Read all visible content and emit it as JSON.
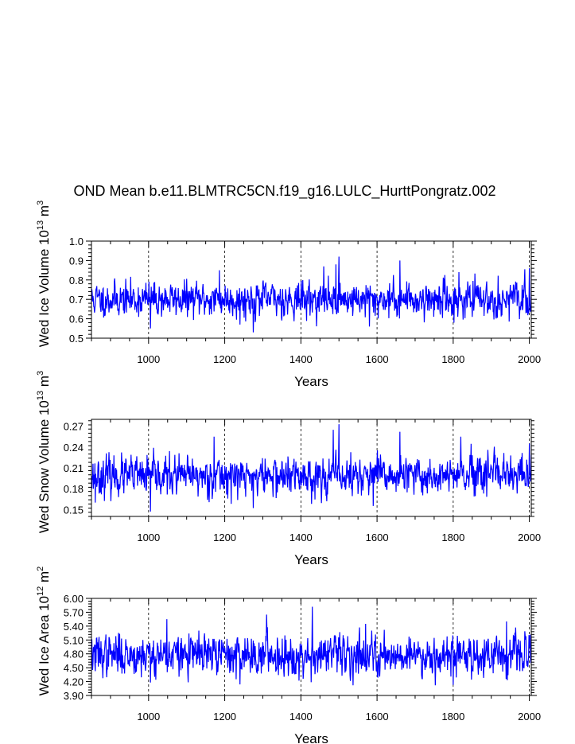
{
  "title": "OND Mean b.e11.BLMTRC5CN.f19_g16.LULC_HurttPongratz.002",
  "chart_data": [
    {
      "type": "line",
      "name": "wed-ice-volume",
      "xlabel": "Years",
      "ylabel_main": "Wed Ice Volume 10",
      "ylabel_exp": "13",
      "ylabel_unit": " m",
      "ylabel_unit_exp": "3",
      "xlim": [
        850,
        2005
      ],
      "ylim": [
        0.5,
        1.0
      ],
      "xticks": [
        1000,
        1200,
        1400,
        1600,
        1800,
        2000
      ],
      "yticks": [
        0.5,
        0.6,
        0.7,
        0.8,
        0.9,
        1.0
      ],
      "ytick_labels": [
        "0.5",
        "0.6",
        "0.7",
        "0.8",
        "0.9",
        "1.0"
      ],
      "color": "#0000ff",
      "series": {
        "name": "Wed Ice Volume",
        "seed": 11,
        "mean": 0.7,
        "sd": 0.045,
        "min": 0.53,
        "max": 0.92,
        "spikes": [
          [
            1275,
            0.53
          ],
          [
            1500,
            0.92
          ],
          [
            1492,
            0.88
          ],
          [
            1660,
            0.9
          ],
          [
            1186,
            0.85
          ],
          [
            1005,
            0.55
          ],
          [
            1580,
            0.56
          ],
          [
            1802,
            0.58
          ],
          [
            1815,
            0.84
          ],
          [
            1460,
            0.87
          ],
          [
            1240,
            0.57
          ],
          [
            2000,
            0.86
          ]
        ]
      }
    },
    {
      "type": "line",
      "name": "wed-snow-volume",
      "xlabel": "Years",
      "ylabel_main": "Wed Snow Volume 10",
      "ylabel_exp": "13",
      "ylabel_unit": " m",
      "ylabel_unit_exp": "3",
      "xlim": [
        850,
        2005
      ],
      "ylim": [
        0.14,
        0.28
      ],
      "xticks": [
        1000,
        1200,
        1400,
        1600,
        1800,
        2000
      ],
      "yticks": [
        0.15,
        0.18,
        0.21,
        0.24,
        0.27
      ],
      "ytick_labels": [
        "0.15",
        "0.18",
        "0.21",
        "0.24",
        "0.27"
      ],
      "color": "#0000ff",
      "series": {
        "name": "Wed Snow Volume",
        "seed": 23,
        "mean": 0.198,
        "sd": 0.014,
        "min": 0.147,
        "max": 0.273,
        "spikes": [
          [
            1005,
            0.147
          ],
          [
            1500,
            0.273
          ],
          [
            1485,
            0.265
          ],
          [
            1660,
            0.262
          ],
          [
            1172,
            0.255
          ],
          [
            1275,
            0.152
          ],
          [
            1820,
            0.255
          ],
          [
            1590,
            0.155
          ],
          [
            2000,
            0.245
          ],
          [
            860,
            0.16
          ]
        ]
      }
    },
    {
      "type": "line",
      "name": "wed-ice-area",
      "xlabel": "Years",
      "ylabel_main": "Wed Ice Area 10",
      "ylabel_exp": "12",
      "ylabel_unit": " m",
      "ylabel_unit_exp": "2",
      "xlim": [
        850,
        2005
      ],
      "ylim": [
        3.9,
        6.0
      ],
      "xticks": [
        1000,
        1200,
        1400,
        1600,
        1800,
        2000
      ],
      "yticks": [
        3.9,
        4.2,
        4.5,
        4.8,
        5.1,
        5.4,
        5.7,
        6.0
      ],
      "ytick_labels": [
        "3.90",
        "4.20",
        "4.50",
        "4.80",
        "5.10",
        "5.40",
        "5.70",
        "6.00"
      ],
      "color": "#0000ff",
      "series": {
        "name": "Wed Ice Area",
        "seed": 37,
        "mean": 4.78,
        "sd": 0.22,
        "min": 4.12,
        "max": 5.82,
        "spikes": [
          [
            1430,
            5.82
          ],
          [
            1310,
            5.65
          ],
          [
            1048,
            5.55
          ],
          [
            1800,
            4.13
          ],
          [
            1005,
            4.18
          ],
          [
            1940,
            5.5
          ],
          [
            1570,
            5.45
          ],
          [
            1230,
            4.25
          ],
          [
            1880,
            4.28
          ],
          [
            1395,
            4.22
          ]
        ]
      }
    }
  ]
}
